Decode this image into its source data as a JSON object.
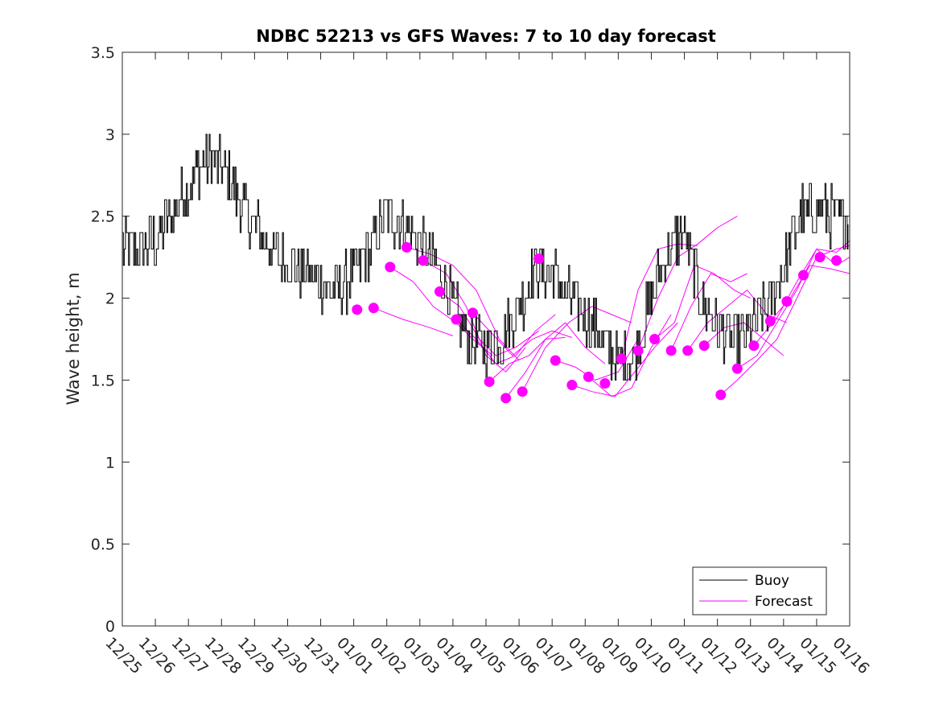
{
  "chart_data": {
    "type": "line",
    "title": "NDBC 52213 vs GFS Waves: 7 to 10 day forecast",
    "xlabel": "",
    "ylabel": "Wave height, m",
    "ylim": [
      0,
      3.5
    ],
    "yticks": [
      0,
      0.5,
      1,
      1.5,
      2,
      2.5,
      3,
      3.5
    ],
    "ytick_labels": [
      "0",
      "0.5",
      "1",
      "1.5",
      "2",
      "2.5",
      "3",
      "3.5"
    ],
    "xlim": [
      0,
      22
    ],
    "xtick_labels": [
      "12/25",
      "12/26",
      "12/27",
      "12/28",
      "12/29",
      "12/30",
      "12/31",
      "01/01",
      "01/02",
      "01/03",
      "01/04",
      "01/05",
      "01/06",
      "01/07",
      "01/08",
      "01/09",
      "01/10",
      "01/11",
      "01/12",
      "01/13",
      "01/14",
      "01/15",
      "01/16"
    ],
    "legend": {
      "position": "bottom-right",
      "entries": [
        "Buoy",
        "Forecast"
      ]
    },
    "colors": {
      "buoy": "#000000",
      "forecast": "#ff00ff"
    },
    "buoy": {
      "name": "Buoy",
      "x": [
        0,
        0.5,
        1,
        1.5,
        2,
        2.5,
        3,
        3.5,
        4,
        4.5,
        5,
        5.5,
        6,
        6.5,
        7,
        7.5,
        8,
        8.5,
        9,
        9.5,
        10,
        10.5,
        11,
        11.5,
        12,
        12.5,
        13,
        13.5,
        14,
        14.5,
        15,
        15.5,
        16,
        16.5,
        17,
        17.5,
        18,
        18.5,
        19,
        19.5,
        20,
        20.5,
        21,
        21.5,
        21.95
      ],
      "y": [
        2.3,
        2.3,
        2.35,
        2.5,
        2.7,
        2.85,
        2.8,
        2.6,
        2.45,
        2.3,
        2.2,
        2.15,
        2.1,
        2.05,
        2.15,
        2.3,
        2.5,
        2.45,
        2.35,
        2.2,
        1.95,
        1.75,
        1.7,
        1.75,
        1.95,
        2.2,
        2.15,
        2.0,
        1.9,
        1.75,
        1.6,
        1.65,
        2.0,
        2.3,
        2.4,
        2.0,
        1.8,
        1.75,
        1.8,
        1.95,
        2.2,
        2.5,
        2.55,
        2.5,
        2.45
      ]
    },
    "forecast_points": {
      "name": "Forecast",
      "x": [
        7.1,
        7.6,
        8.1,
        8.6,
        9.1,
        9.6,
        10.1,
        10.6,
        11.1,
        11.6,
        12.1,
        12.6,
        13.1,
        13.6,
        14.1,
        14.6,
        15.1,
        15.6,
        16.1,
        16.6,
        17.1,
        17.6,
        18.1,
        18.6,
        19.1,
        19.6,
        20.1,
        20.6,
        21.1,
        21.6
      ],
      "y": [
        1.93,
        1.94,
        2.19,
        2.31,
        2.23,
        2.04,
        1.87,
        1.91,
        1.49,
        1.39,
        1.43,
        2.24,
        1.62,
        1.47,
        1.52,
        1.48,
        1.63,
        1.68,
        1.75,
        1.68,
        1.68,
        1.71,
        1.41,
        1.57,
        1.71,
        1.86,
        1.98,
        2.14,
        2.25,
        2.23
      ]
    },
    "forecast_tracks": [
      {
        "x": [
          7.6,
          8.5,
          9.3,
          10.0
        ],
        "y": [
          1.94,
          1.87,
          1.82,
          1.77
        ]
      },
      {
        "x": [
          8.1,
          8.8,
          9.4,
          10.1,
          10.6,
          11.2
        ],
        "y": [
          2.19,
          2.1,
          1.95,
          1.85,
          1.75,
          1.65
        ]
      },
      {
        "x": [
          8.6,
          9.3,
          10.0,
          10.7,
          11.4,
          12.0
        ],
        "y": [
          2.31,
          2.27,
          2.2,
          2.05,
          1.75,
          1.62
        ]
      },
      {
        "x": [
          9.1,
          9.8,
          10.4,
          11.0,
          11.6,
          12.2
        ],
        "y": [
          2.23,
          2.15,
          1.95,
          1.65,
          1.55,
          1.7
        ]
      },
      {
        "x": [
          9.6,
          10.2,
          10.8,
          11.3,
          11.9,
          12.6
        ],
        "y": [
          2.04,
          1.95,
          1.75,
          1.65,
          1.7,
          1.8
        ]
      },
      {
        "x": [
          10.1,
          10.7,
          11.3,
          11.9,
          12.5,
          13.1
        ],
        "y": [
          1.87,
          1.75,
          1.6,
          1.65,
          1.8,
          1.9
        ]
      },
      {
        "x": [
          10.6,
          11.2,
          11.8,
          12.4,
          13.0,
          13.6
        ],
        "y": [
          1.91,
          1.78,
          1.65,
          1.75,
          1.8,
          1.76
        ]
      },
      {
        "x": [
          11.1,
          11.7,
          12.3,
          12.8,
          13.4
        ],
        "y": [
          1.49,
          1.6,
          1.65,
          1.75,
          1.76
        ]
      },
      {
        "x": [
          11.6,
          12.2,
          12.8,
          13.4,
          14.0,
          14.6
        ],
        "y": [
          1.39,
          1.55,
          1.75,
          1.85,
          1.7,
          1.6
        ]
      },
      {
        "x": [
          12.1,
          12.8,
          13.5,
          14.2,
          14.8,
          15.4
        ],
        "y": [
          1.43,
          1.7,
          1.85,
          1.95,
          1.9,
          1.85
        ]
      },
      {
        "x": [
          13.1,
          13.7,
          14.3,
          15.0,
          15.6
        ],
        "y": [
          1.62,
          1.58,
          1.5,
          1.55,
          1.75
        ]
      },
      {
        "x": [
          13.6,
          14.2,
          14.9,
          15.5,
          16.1,
          16.8
        ],
        "y": [
          1.47,
          1.43,
          1.4,
          1.55,
          1.7,
          1.85
        ]
      },
      {
        "x": [
          14.1,
          14.8,
          15.4,
          16.0,
          16.6
        ],
        "y": [
          1.52,
          1.4,
          1.45,
          1.7,
          1.9
        ]
      },
      {
        "x": [
          15.1,
          15.6,
          16.2,
          16.8,
          17.4
        ],
        "y": [
          1.63,
          2.05,
          2.3,
          2.33,
          2.32
        ]
      },
      {
        "x": [
          15.6,
          16.2,
          16.8,
          17.4,
          18.0,
          18.6
        ],
        "y": [
          1.68,
          2.0,
          2.25,
          2.33,
          2.43,
          2.5
        ]
      },
      {
        "x": [
          16.1,
          16.7,
          17.3,
          17.9,
          18.5,
          19.0
        ],
        "y": [
          1.75,
          1.85,
          2.2,
          2.15,
          2.05,
          2.0
        ]
      },
      {
        "x": [
          16.6,
          17.2,
          17.8,
          18.4,
          18.9
        ],
        "y": [
          1.68,
          1.95,
          2.15,
          2.1,
          2.15
        ]
      },
      {
        "x": [
          17.1,
          17.7,
          18.3,
          18.9,
          19.5,
          20.1
        ],
        "y": [
          1.68,
          1.85,
          1.95,
          2.05,
          1.9,
          1.85
        ]
      },
      {
        "x": [
          17.6,
          18.2,
          18.8,
          19.4,
          20.0
        ],
        "y": [
          1.71,
          1.82,
          1.85,
          1.75,
          1.65
        ]
      },
      {
        "x": [
          18.6,
          19.2,
          19.8,
          20.4,
          21.0,
          21.6,
          22.0
        ],
        "y": [
          1.57,
          1.65,
          1.85,
          2.05,
          2.3,
          2.28,
          2.35
        ]
      },
      {
        "x": [
          19.1,
          19.8,
          20.4,
          21.0,
          21.6,
          22.0
        ],
        "y": [
          1.71,
          1.88,
          2.1,
          2.3,
          2.2,
          2.25
        ]
      },
      {
        "x": [
          19.6,
          20.2,
          20.8,
          21.4,
          22.0
        ],
        "y": [
          1.86,
          2.0,
          2.2,
          2.18,
          2.15
        ]
      },
      {
        "x": [
          18.1,
          18.6,
          19.2,
          19.8,
          20.4,
          21.0,
          21.6,
          22.0
        ],
        "y": [
          1.41,
          1.5,
          1.62,
          1.75,
          2.0,
          2.25,
          2.3,
          2.32
        ]
      }
    ]
  }
}
